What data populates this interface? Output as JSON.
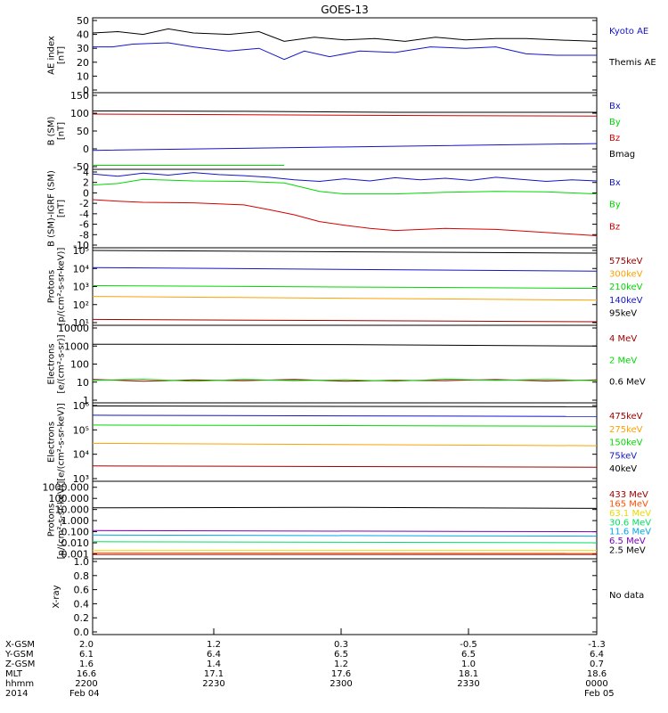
{
  "title": "GOES-13",
  "no_data_label": "No data",
  "colors": {
    "black": "#000000",
    "blue": "#1414c8",
    "green": "#00d800",
    "red": "#d40000",
    "darkred": "#a00000",
    "orange": "#ffa000",
    "lightgreen": "#00e060",
    "cyan": "#00a8e8",
    "purple": "#7a00c0",
    "yellow": "#e8d800",
    "orangered": "#ff5000"
  },
  "ephemeris": {
    "labels": [
      "X-GSM",
      "Y-GSM",
      "Z-GSM",
      "MLT",
      "hhmm",
      "2014"
    ],
    "columns": [
      {
        "x": "2.0",
        "y": "6.1",
        "z": "1.6",
        "mlt": "16.6",
        "hhmm": "2200",
        "date": "Feb 04"
      },
      {
        "x": "1.2",
        "y": "6.4",
        "z": "1.4",
        "mlt": "17.1",
        "hhmm": "2230",
        "date": ""
      },
      {
        "x": "0.3",
        "y": "6.5",
        "z": "1.2",
        "mlt": "17.6",
        "hhmm": "2300",
        "date": ""
      },
      {
        "x": "-0.5",
        "y": "6.5",
        "z": "1.0",
        "mlt": "18.1",
        "hhmm": "2330",
        "date": ""
      },
      {
        "x": "-1.3",
        "y": "6.4",
        "z": "0.7",
        "mlt": "18.6",
        "hhmm": "0000",
        "date": "Feb 05"
      }
    ]
  },
  "chart_data": [
    {
      "type": "line",
      "ylabel": "AE index\n[nT]",
      "ylim": [
        0,
        50
      ],
      "ticks": [
        "0",
        "10",
        "20",
        "30",
        "40",
        "50"
      ],
      "series": [
        {
          "name": "Kyoto AE",
          "color": "blue",
          "x": [
            0,
            0.04,
            0.08,
            0.15,
            0.2,
            0.27,
            0.33,
            0.38,
            0.42,
            0.47,
            0.53,
            0.6,
            0.67,
            0.74,
            0.8,
            0.86,
            0.92,
            1
          ],
          "y": [
            31,
            31,
            33,
            34,
            31,
            28,
            30,
            22,
            28,
            24,
            28,
            27,
            31,
            30,
            31,
            26,
            25,
            25
          ]
        },
        {
          "name": "Themis AE",
          "color": "black",
          "x": [
            0,
            0.05,
            0.1,
            0.15,
            0.2,
            0.27,
            0.33,
            0.38,
            0.44,
            0.5,
            0.56,
            0.62,
            0.68,
            0.74,
            0.8,
            0.86,
            0.92,
            1
          ],
          "y": [
            41,
            42,
            40,
            44,
            41,
            40,
            42,
            35,
            38,
            36,
            37,
            35,
            38,
            36,
            37,
            37,
            36,
            35
          ]
        }
      ]
    },
    {
      "type": "line",
      "ylabel": "B (SM)\n[nT]",
      "ylim": [
        -60,
        150
      ],
      "ticks": [
        "-50",
        "0",
        "50",
        "100",
        "150"
      ],
      "series": [
        {
          "name": "Bx",
          "color": "blue",
          "x": [
            0,
            0.3,
            0.6,
            1
          ],
          "y": [
            -12,
            -6,
            0,
            8
          ]
        },
        {
          "name": "By",
          "color": "green",
          "x": [
            0,
            0.38
          ],
          "y": [
            -56,
            -56
          ]
        },
        {
          "name": "Bz",
          "color": "red",
          "x": [
            0,
            0.3,
            0.6,
            1
          ],
          "y": [
            95,
            93,
            91,
            89
          ]
        },
        {
          "name": "Bmag",
          "color": "black",
          "x": [
            0,
            0.3,
            0.6,
            1
          ],
          "y": [
            104,
            103,
            100,
            100
          ]
        }
      ]
    },
    {
      "type": "line",
      "ylabel": "B (SM)-IGRF (SM)\n[nT]",
      "ylim": [
        -10,
        4
      ],
      "ticks": [
        "-10",
        "-8",
        "-6",
        "-4",
        "-2",
        "0",
        "2",
        "4"
      ],
      "series": [
        {
          "name": "Bx",
          "color": "blue",
          "x": [
            0,
            0.05,
            0.1,
            0.15,
            0.2,
            0.25,
            0.3,
            0.35,
            0.4,
            0.45,
            0.5,
            0.55,
            0.6,
            0.65,
            0.7,
            0.75,
            0.8,
            0.85,
            0.9,
            0.95,
            1
          ],
          "y": [
            3.6,
            3.2,
            3.8,
            3.4,
            3.9,
            3.5,
            3.3,
            3.0,
            2.5,
            2.2,
            2.7,
            2.3,
            2.9,
            2.5,
            2.8,
            2.4,
            3.0,
            2.6,
            2.2,
            2.5,
            2.3
          ]
        },
        {
          "name": "By",
          "color": "green",
          "x": [
            0,
            0.05,
            0.1,
            0.2,
            0.3,
            0.38,
            0.45,
            0.5,
            0.6,
            0.7,
            0.8,
            0.9,
            1
          ],
          "y": [
            1.5,
            1.8,
            2.6,
            2.3,
            2.2,
            1.9,
            0.3,
            -0.2,
            -0.2,
            0.1,
            0.3,
            0.2,
            -0.2
          ]
        },
        {
          "name": "Bz",
          "color": "red",
          "x": [
            0,
            0.05,
            0.1,
            0.2,
            0.3,
            0.35,
            0.4,
            0.45,
            0.5,
            0.55,
            0.6,
            0.7,
            0.8,
            0.9,
            1
          ],
          "y": [
            -1.3,
            -1.6,
            -1.8,
            -1.9,
            -2.3,
            -3.2,
            -4.2,
            -5.5,
            -6.2,
            -6.8,
            -7.2,
            -6.8,
            -7.0,
            -7.6,
            -8.2
          ]
        }
      ]
    },
    {
      "type": "line",
      "ylabel": "Protons\n[p/(cm²-s-sr-keV)]",
      "log": true,
      "ylim": [
        1,
        5
      ],
      "ticks": [
        "10¹",
        "10²",
        "10³",
        "10⁴",
        "10⁵"
      ],
      "series": [
        {
          "name": "575keV",
          "color": "darkred",
          "x": [
            0,
            1
          ],
          "y": [
            1.18,
            1.05
          ]
        },
        {
          "name": "300keV",
          "color": "orange",
          "x": [
            0,
            1
          ],
          "y": [
            2.45,
            2.25
          ]
        },
        {
          "name": "210keV",
          "color": "green",
          "x": [
            0,
            1
          ],
          "y": [
            3.05,
            2.9
          ]
        },
        {
          "name": "140keV",
          "color": "blue",
          "x": [
            0,
            1
          ],
          "y": [
            4.05,
            3.85
          ]
        },
        {
          "name": "95keV",
          "color": "black",
          "x": [
            0,
            1
          ],
          "y": [
            5.0,
            4.85
          ]
        }
      ]
    },
    {
      "type": "line",
      "ylabel": "Electrons\n[e/(cm²-s-sr)]",
      "log": true,
      "ylim": [
        0,
        4
      ],
      "ticks": [
        "1",
        "10",
        "100",
        "1000",
        "10000"
      ],
      "series": [
        {
          "name": "4 MeV",
          "color": "darkred",
          "x": [
            0,
            0.1,
            0.2,
            0.3,
            0.4,
            0.5,
            0.6,
            0.7,
            0.8,
            0.9,
            1
          ],
          "y": [
            1.15,
            1.05,
            1.12,
            1.08,
            1.15,
            1.05,
            1.1,
            1.08,
            1.14,
            1.06,
            1.12
          ]
        },
        {
          "name": "2 MeV",
          "color": "green",
          "x": [
            0,
            0.1,
            0.2,
            0.3,
            0.4,
            0.5,
            0.6,
            0.7,
            0.8,
            0.9,
            1
          ],
          "y": [
            1.1,
            1.16,
            1.05,
            1.15,
            1.08,
            1.13,
            1.05,
            1.16,
            1.1,
            1.15,
            1.08
          ]
        },
        {
          "name": "0.6 MeV",
          "color": "black",
          "x": [
            0,
            0.5,
            1
          ],
          "y": [
            3.1,
            3.08,
            3.0
          ]
        }
      ]
    },
    {
      "type": "line",
      "ylabel": "Electrons\n[e/(cm²-s-sr-keV)]",
      "log": true,
      "ylim": [
        3,
        6
      ],
      "ticks": [
        "10³",
        "10⁴",
        "10⁵",
        "10⁶"
      ],
      "series": [
        {
          "name": "475keV",
          "color": "darkred",
          "x": [
            0,
            1
          ],
          "y": [
            3.52,
            3.47
          ]
        },
        {
          "name": "275keV",
          "color": "orange",
          "x": [
            0,
            1
          ],
          "y": [
            4.45,
            4.35
          ]
        },
        {
          "name": "150keV",
          "color": "green",
          "x": [
            0,
            1
          ],
          "y": [
            5.2,
            5.15
          ]
        },
        {
          "name": "75keV",
          "color": "blue",
          "x": [
            0,
            1
          ],
          "y": [
            5.6,
            5.55
          ]
        },
        {
          "name": "40keV",
          "color": "black",
          "x": [
            0,
            1
          ],
          "y": [
            5.98,
            5.95
          ]
        }
      ]
    },
    {
      "type": "line",
      "ylabel": "Protons\n[p/(cm²-s-sr-keV)]",
      "log": true,
      "ylim": [
        -3.2,
        3.3
      ],
      "ticks": [
        "0.001",
        "0.010",
        "0.100",
        "1.000",
        "10.000",
        "100.000",
        "1000.000"
      ],
      "series": [
        {
          "name": "433 MeV",
          "color": "darkred",
          "x": [
            0,
            1
          ],
          "y": [
            -3.05,
            -3.05
          ]
        },
        {
          "name": "165 MeV",
          "color": "orangered",
          "x": [
            0,
            1
          ],
          "y": [
            -2.9,
            -2.95
          ]
        },
        {
          "name": "63.1 MeV",
          "color": "yellow",
          "x": [
            0,
            1
          ],
          "y": [
            -2.7,
            -2.7
          ]
        },
        {
          "name": "30.6 MeV",
          "color": "lightgreen",
          "x": [
            0,
            1
          ],
          "y": [
            -1.9,
            -2.0
          ]
        },
        {
          "name": "11.6 MeV",
          "color": "cyan",
          "x": [
            0,
            1
          ],
          "y": [
            -1.3,
            -1.4
          ]
        },
        {
          "name": "6.5 MeV",
          "color": "purple",
          "x": [
            0,
            1
          ],
          "y": [
            -0.9,
            -1.0
          ]
        },
        {
          "name": "2.5 MeV",
          "color": "black",
          "x": [
            0,
            0.5,
            1
          ],
          "y": [
            1.15,
            1.2,
            1.1
          ]
        }
      ]
    },
    {
      "type": "line",
      "ylabel": "X-ray",
      "ylim": [
        0,
        1
      ],
      "ticks": [
        "0.0",
        "0.2",
        "0.4",
        "0.6",
        "0.8",
        "1.0"
      ],
      "series": []
    }
  ]
}
